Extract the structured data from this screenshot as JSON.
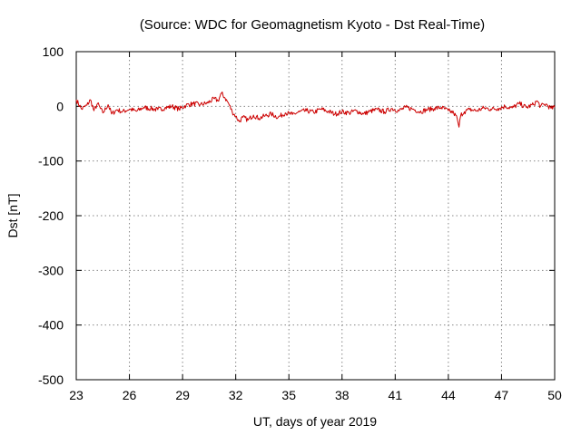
{
  "chart_data": {
    "type": "line",
    "title": "(Source: WDC for Geomagnetism Kyoto - Dst Real-Time)",
    "xlabel": "UT, days of year 2019",
    "ylabel": "Dst [nT]",
    "xlim": [
      23,
      50
    ],
    "ylim": [
      -500,
      100
    ],
    "x_ticks": [
      23,
      26,
      29,
      32,
      35,
      38,
      41,
      44,
      47,
      50
    ],
    "y_ticks": [
      100,
      0,
      -100,
      -200,
      -300,
      -400,
      -500
    ],
    "grid": true,
    "legend": "none",
    "series": [
      {
        "color": "#cc0000",
        "x": [
          23.0,
          23.3,
          23.6,
          23.8,
          24.0,
          24.2,
          24.5,
          24.8,
          25.0,
          25.3,
          25.6,
          26.0,
          26.4,
          26.8,
          27.2,
          27.6,
          28.0,
          28.4,
          28.8,
          29.2,
          29.6,
          30.0,
          30.4,
          30.8,
          31.0,
          31.2,
          31.4,
          31.6,
          31.8,
          32.0,
          32.2,
          32.4,
          32.7,
          33.0,
          33.3,
          33.6,
          34.0,
          34.4,
          34.8,
          35.2,
          35.6,
          36.0,
          36.4,
          36.8,
          37.2,
          37.6,
          38.0,
          38.4,
          38.8,
          39.2,
          39.6,
          40.0,
          40.4,
          40.8,
          41.2,
          41.6,
          42.0,
          42.4,
          42.8,
          43.2,
          43.6,
          44.0,
          44.3,
          44.5,
          44.6,
          44.7,
          44.9,
          45.2,
          45.6,
          46.0,
          46.4,
          46.8,
          47.2,
          47.6,
          48.0,
          48.4,
          48.8,
          49.0,
          49.2,
          49.5,
          49.8,
          50.0
        ],
        "y": [
          12,
          -5,
          2,
          12,
          -8,
          5,
          -12,
          3,
          -14,
          -6,
          -10,
          -5,
          -9,
          -2,
          -4,
          -6,
          -3,
          0,
          -5,
          2,
          5,
          3,
          6,
          14,
          10,
          24,
          15,
          5,
          -10,
          -18,
          -28,
          -20,
          -25,
          -16,
          -22,
          -18,
          -14,
          -20,
          -12,
          -15,
          -10,
          -8,
          -11,
          -5,
          -9,
          -14,
          -10,
          -12,
          -8,
          -14,
          -9,
          -6,
          -10,
          -4,
          -8,
          -2,
          -5,
          -10,
          -6,
          -4,
          -2,
          -8,
          -12,
          -22,
          -38,
          -16,
          -10,
          -6,
          -8,
          -3,
          -5,
          -4,
          0,
          -3,
          5,
          -2,
          3,
          10,
          0,
          4,
          -4,
          -2
        ]
      }
    ]
  }
}
